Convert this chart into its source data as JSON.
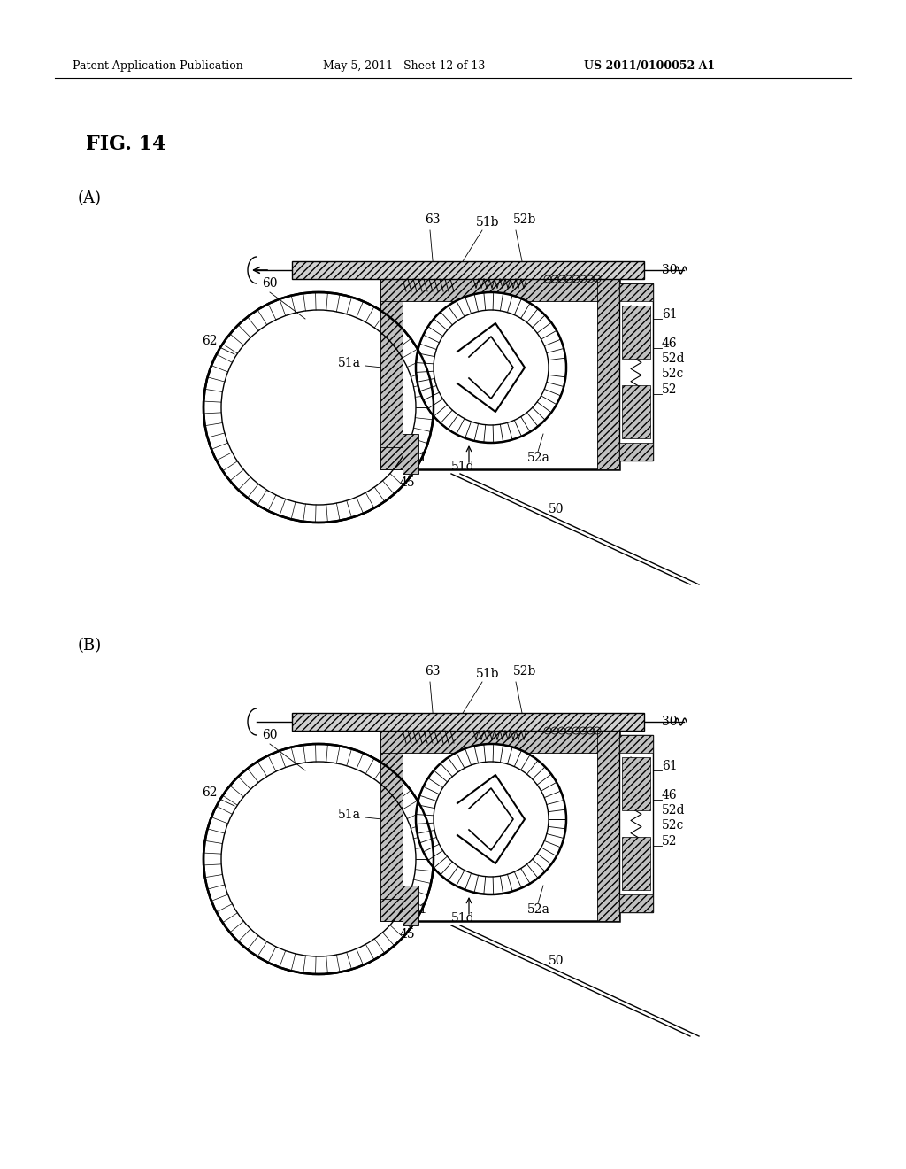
{
  "bg_color": "#ffffff",
  "header_left": "Patent Application Publication",
  "header_mid": "May 5, 2011   Sheet 12 of 13",
  "header_right": "US 2011/0100052 A1",
  "fig_title": "FIG. 14",
  "panel_A_label": "(A)",
  "panel_B_label": "(B)",
  "lfs": 10,
  "lff": "DejaVu Serif"
}
